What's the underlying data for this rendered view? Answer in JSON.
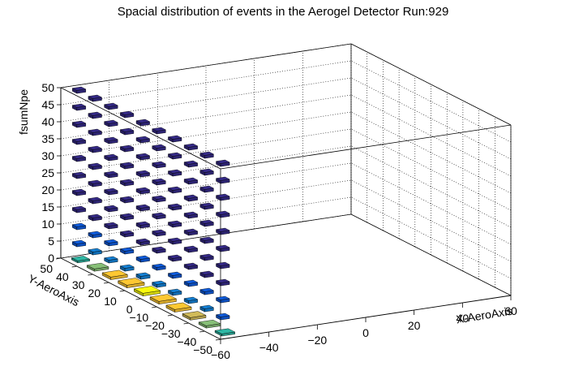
{
  "chart_data": {
    "type": "lego3d",
    "title": "Spacial distribution of events in the Aerogel Detector Run:929",
    "xlabel": "X-AeroAxis",
    "ylabel": "Y-AeroAxis",
    "zlabel": "fsumNpe",
    "xlim": [
      -60,
      60
    ],
    "ylim": [
      -50,
      50
    ],
    "zlim": [
      0,
      50
    ],
    "x_ticks": [
      "−60",
      "−40",
      "−20",
      "0",
      "20",
      "40",
      "60"
    ],
    "y_ticks": [
      "−50",
      "−40",
      "−30",
      "−20",
      "−10",
      "0",
      "10",
      "20",
      "30",
      "40",
      "50"
    ],
    "z_ticks": [
      "0",
      "5",
      "10",
      "15",
      "20",
      "25",
      "30",
      "35",
      "40",
      "45",
      "50"
    ],
    "grid": true,
    "palette": [
      "#352a87",
      "#0f5cdd",
      "#1481d6",
      "#06a4ca",
      "#2eb7a4",
      "#87bf77",
      "#d1bb59",
      "#fec832",
      "#f9fb0e"
    ],
    "z_columns": [
      0,
      5,
      10,
      15,
      20,
      25,
      30,
      35,
      40,
      45,
      50
    ],
    "sample_rows": [
      {
        "y": 45,
        "counts": [
          4.2,
          1.4,
          0.6,
          0.3,
          0.2,
          0.1,
          0.1,
          0.1,
          0.1,
          0.1,
          0.1
        ]
      },
      {
        "y": 25,
        "counts": [
          7.5,
          2.0,
          0.8,
          0.4,
          0.2,
          0.2,
          0.1,
          0.1,
          0.1,
          0.1,
          0.1
        ]
      },
      {
        "y": 5,
        "counts": [
          8.8,
          2.2,
          0.9,
          0.4,
          0.3,
          0.2,
          0.2,
          0.1,
          0.1,
          0.1,
          0.1
        ]
      },
      {
        "y": -15,
        "counts": [
          7.5,
          2.0,
          0.8,
          0.4,
          0.2,
          0.2,
          0.1,
          0.1,
          0.1,
          0.1,
          0.1
        ]
      },
      {
        "y": -45,
        "counts": [
          5.0,
          1.6,
          0.6,
          0.3,
          0.2,
          0.1,
          0.1,
          0.1,
          0.1,
          0.1,
          0.1
        ]
      }
    ]
  }
}
